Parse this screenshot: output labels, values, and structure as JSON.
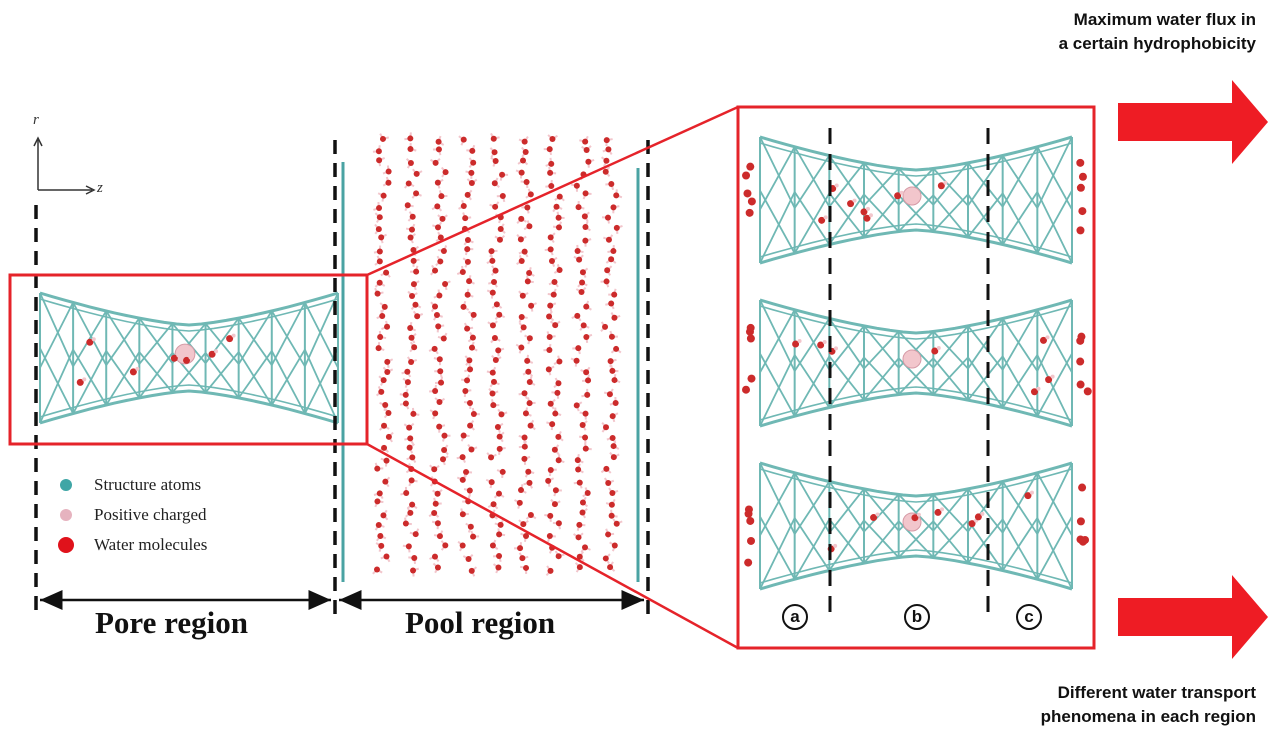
{
  "notes": {
    "top": [
      "Maximum water flux in",
      "a certain hydrophobicity"
    ],
    "bottom": [
      "Different water transport",
      "phenomena in each region"
    ]
  },
  "regions": {
    "pore": "Pore region",
    "pool": "Pool region"
  },
  "legend": [
    {
      "label": "Structure atoms",
      "color": "#3fa6a6"
    },
    {
      "label": "Positive charged",
      "color": "#e6b3bf"
    },
    {
      "label": "Water molecules",
      "color": "#e0121b"
    }
  ],
  "axes": {
    "r": "r",
    "z": "z"
  },
  "sub_regions": [
    "a",
    "b",
    "c"
  ],
  "colors": {
    "frame": "#e5232a",
    "arrow": "#ee1c24",
    "lattice": "#6fb8b4",
    "water": "#cc2b2b",
    "hydrogen": "#f2c6cc",
    "dashed": "#111111"
  }
}
